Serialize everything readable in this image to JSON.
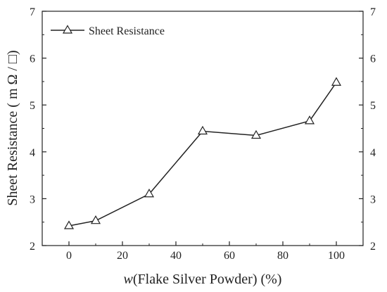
{
  "chart_data": {
    "type": "line",
    "xlabel_italic": "w",
    "xlabel_rest": "(Flake Silver Powder) (%)",
    "ylabel": "Sheet Resistance ( m Ω / □)",
    "xlim": [
      -10,
      110
    ],
    "ylim": [
      2,
      7
    ],
    "xticks": [
      0,
      20,
      40,
      60,
      80,
      100
    ],
    "yticks": [
      2,
      3,
      4,
      5,
      6,
      7
    ],
    "right_axis_ticks": [
      2,
      3,
      4,
      5,
      6,
      7
    ],
    "grid": false,
    "legend_position": "top-left",
    "series": [
      {
        "name": "Sheet Resistance",
        "marker": "open-triangle",
        "color": "#000000",
        "x": [
          0,
          10,
          30,
          50,
          70,
          90,
          100
        ],
        "y": [
          2.42,
          2.53,
          3.1,
          4.44,
          4.35,
          4.66,
          5.48
        ]
      }
    ]
  }
}
